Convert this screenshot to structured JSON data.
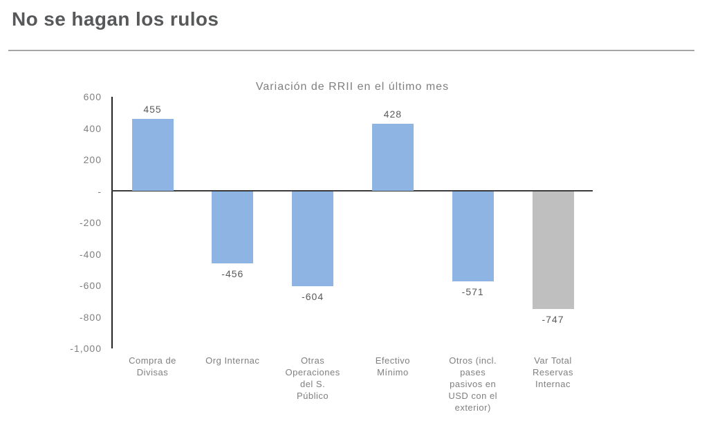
{
  "header": {
    "title": "No se hagan los rulos"
  },
  "colors": {
    "bar_blue": "#8DB4E2",
    "bar_gray": "#BFBFBF",
    "axis_line": "#222222",
    "zero_line": "#3A3A3A",
    "page_title_text": "#57585A",
    "chart_text": "#7F7F7F",
    "value_label_text": "#595959",
    "divider": "#A5A5A5"
  },
  "chart_data": {
    "type": "bar",
    "title": "Variación de RRII en el último mes",
    "xlabel": "",
    "ylabel": "",
    "grid": false,
    "legend": false,
    "categories": [
      "Compra de Divisas",
      "Org Internac",
      "Otras Operaciones del S. Público",
      "Efectivo Mínimo",
      "Otros (incl. pases pasivos en USD con el exterior)",
      "Var Total Reservas Internac"
    ],
    "category_labels": [
      "Compra de\nDivisas",
      "Org Internac",
      "Otras\nOperaciones\ndel S.\nPúblico",
      "Efectivo\nMínimo",
      "Otros (incl.\npases\npasivos en\nUSD con el\nexterior)",
      "Var Total\nReservas\nInternac"
    ],
    "values": [
      455,
      -456,
      -604,
      428,
      -571,
      -747
    ],
    "value_labels": [
      "455",
      "-456",
      "-604",
      "428",
      "-571",
      "-747"
    ],
    "bar_colors": [
      "#8DB4E2",
      "#8DB4E2",
      "#8DB4E2",
      "#8DB4E2",
      "#8DB4E2",
      "#BFBFBF"
    ],
    "ylim": [
      -1000,
      600
    ],
    "ytick_values": [
      600,
      400,
      200,
      0,
      -200,
      -400,
      -600,
      -800,
      -1000
    ],
    "ytick_labels": [
      "600",
      "400",
      "200",
      "-",
      "-200",
      "-400",
      "-600",
      "-800",
      "-1,000"
    ]
  }
}
